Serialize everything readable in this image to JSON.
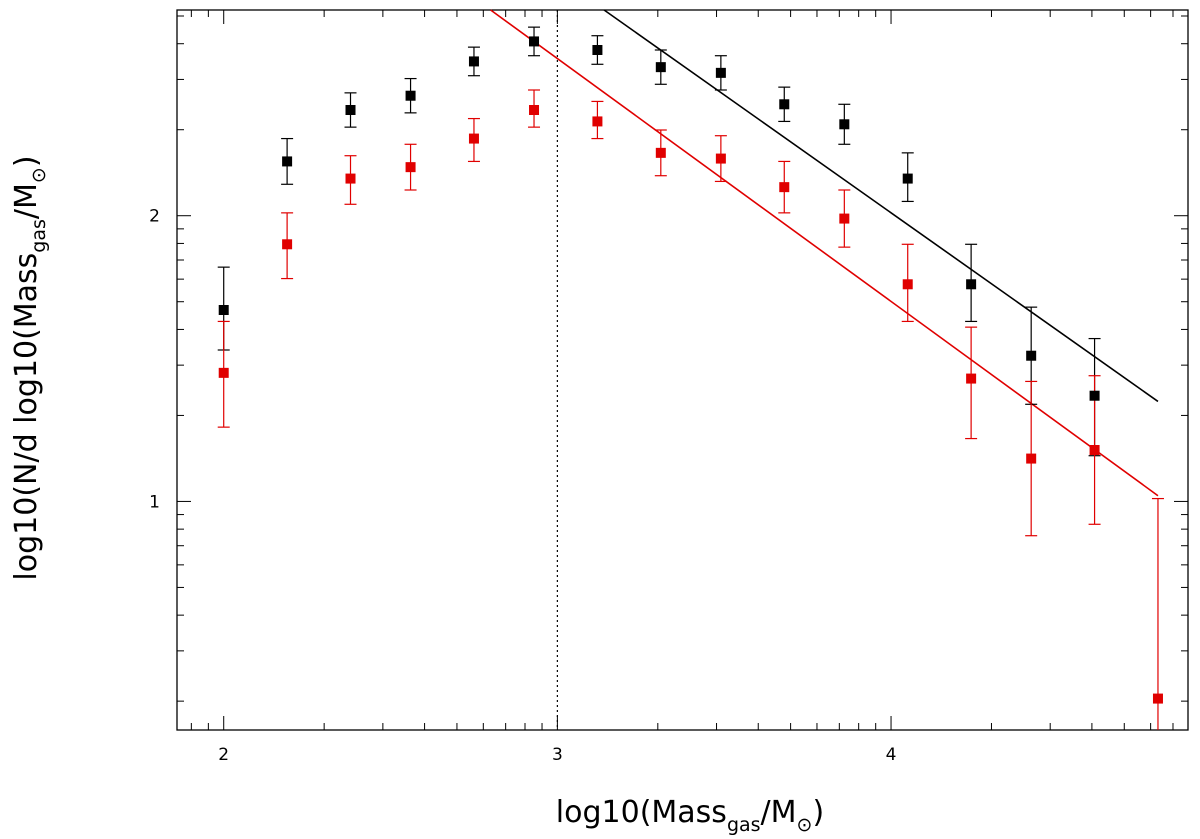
{
  "chart_data": {
    "type": "scatter",
    "xlabel_main": "log10(Mass",
    "xlabel_sub": "gas",
    "xlabel_end": "/M",
    "xlabel_close": ")",
    "ylabel_main": "log10(N/d log10(Mass",
    "ylabel_sub": "gas",
    "ylabel_end": "/M",
    "ylabel_close": ")",
    "xlim": [
      1.86,
      4.89
    ],
    "ylim": [
      0.2,
      2.72
    ],
    "x_ticks": [
      "2",
      "3",
      "4"
    ],
    "y_ticks": [
      "1",
      "2"
    ],
    "grid": false,
    "reference_line_x": 3.0,
    "series": [
      {
        "color": "#000000",
        "points": [
          {
            "x": 2.0,
            "y": 1.67,
            "lo": 1.53,
            "hi": 1.82
          },
          {
            "x": 2.19,
            "y": 2.19,
            "lo": 2.11,
            "hi": 2.27
          },
          {
            "x": 2.38,
            "y": 2.37,
            "lo": 2.31,
            "hi": 2.43
          },
          {
            "x": 2.56,
            "y": 2.42,
            "lo": 2.36,
            "hi": 2.48
          },
          {
            "x": 2.75,
            "y": 2.54,
            "lo": 2.49,
            "hi": 2.59
          },
          {
            "x": 2.93,
            "y": 2.61,
            "lo": 2.56,
            "hi": 2.66
          },
          {
            "x": 3.12,
            "y": 2.58,
            "lo": 2.53,
            "hi": 2.63
          },
          {
            "x": 3.31,
            "y": 2.52,
            "lo": 2.46,
            "hi": 2.58
          },
          {
            "x": 3.49,
            "y": 2.5,
            "lo": 2.44,
            "hi": 2.56
          },
          {
            "x": 3.68,
            "y": 2.39,
            "lo": 2.33,
            "hi": 2.45
          },
          {
            "x": 3.86,
            "y": 2.32,
            "lo": 2.25,
            "hi": 2.39
          },
          {
            "x": 4.05,
            "y": 2.13,
            "lo": 2.05,
            "hi": 2.22
          },
          {
            "x": 4.24,
            "y": 1.76,
            "lo": 1.63,
            "hi": 1.9
          },
          {
            "x": 4.42,
            "y": 1.51,
            "lo": 1.34,
            "hi": 1.68
          },
          {
            "x": 4.61,
            "y": 1.37,
            "lo": 1.16,
            "hi": 1.57
          }
        ]
      },
      {
        "color": "#e00000",
        "points": [
          {
            "x": 2.0,
            "y": 1.45,
            "lo": 1.26,
            "hi": 1.63
          },
          {
            "x": 2.19,
            "y": 1.9,
            "lo": 1.78,
            "hi": 2.01
          },
          {
            "x": 2.38,
            "y": 2.13,
            "lo": 2.04,
            "hi": 2.21
          },
          {
            "x": 2.56,
            "y": 2.17,
            "lo": 2.09,
            "hi": 2.25
          },
          {
            "x": 2.75,
            "y": 2.27,
            "lo": 2.19,
            "hi": 2.34
          },
          {
            "x": 2.93,
            "y": 2.37,
            "lo": 2.31,
            "hi": 2.44
          },
          {
            "x": 3.12,
            "y": 2.33,
            "lo": 2.27,
            "hi": 2.4
          },
          {
            "x": 3.31,
            "y": 2.22,
            "lo": 2.14,
            "hi": 2.3
          },
          {
            "x": 3.49,
            "y": 2.2,
            "lo": 2.12,
            "hi": 2.28
          },
          {
            "x": 3.68,
            "y": 2.1,
            "lo": 2.01,
            "hi": 2.19
          },
          {
            "x": 3.86,
            "y": 1.99,
            "lo": 1.89,
            "hi": 2.09
          },
          {
            "x": 4.05,
            "y": 1.76,
            "lo": 1.63,
            "hi": 1.9
          },
          {
            "x": 4.24,
            "y": 1.43,
            "lo": 1.22,
            "hi": 1.61
          },
          {
            "x": 4.42,
            "y": 1.15,
            "lo": 0.88,
            "hi": 1.42
          },
          {
            "x": 4.61,
            "y": 1.18,
            "lo": 0.92,
            "hi": 1.44
          },
          {
            "x": 4.8,
            "y": 0.31,
            "lo": 0.2,
            "hi": 1.01
          }
        ]
      }
    ],
    "fit_lines": [
      {
        "color": "#000000",
        "x": [
          3.14,
          4.8
        ],
        "y": [
          2.72,
          1.35
        ]
      },
      {
        "color": "#e00000",
        "x": [
          2.8,
          4.8
        ],
        "y": [
          2.72,
          1.02
        ]
      }
    ]
  }
}
